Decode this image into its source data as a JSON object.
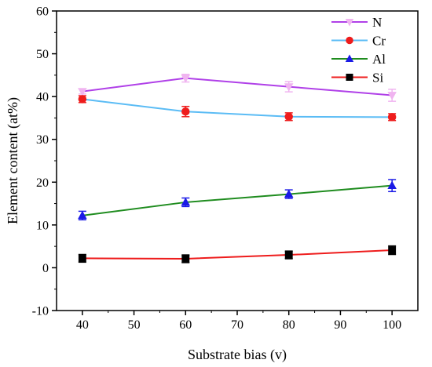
{
  "chart_data": {
    "type": "line",
    "title": "",
    "xlabel": "Substrate bias (v)",
    "ylabel": "Element content (at%)",
    "xlim": [
      35,
      105
    ],
    "ylim": [
      -10,
      60
    ],
    "xticks": [
      40,
      50,
      60,
      70,
      80,
      90,
      100
    ],
    "yticks": [
      -10,
      0,
      10,
      20,
      30,
      40,
      50,
      60
    ],
    "x": [
      40,
      60,
      80,
      100
    ],
    "grid": false,
    "legend_position": "top-right",
    "series": [
      {
        "name": "N",
        "marker": "triangle-down",
        "line_color": "#b040e8",
        "marker_color": "#f0b4f0",
        "values": [
          41.2,
          44.3,
          42.3,
          40.3
        ],
        "errors": [
          0.6,
          0.9,
          1.2,
          1.4
        ]
      },
      {
        "name": "Cr",
        "marker": "circle",
        "line_color": "#5bbcf5",
        "marker_color": "#ee1c1c",
        "values": [
          39.4,
          36.5,
          35.3,
          35.2
        ],
        "errors": [
          0.8,
          1.2,
          0.9,
          0.8
        ]
      },
      {
        "name": "Al",
        "marker": "triangle-up",
        "line_color": "#1f8c1f",
        "marker_color": "#1a1ae6",
        "values": [
          12.2,
          15.3,
          17.2,
          19.2
        ],
        "errors": [
          1.0,
          1.0,
          1.0,
          1.4
        ]
      },
      {
        "name": "Si",
        "marker": "square",
        "line_color": "#ee1c1c",
        "marker_color": "#000000",
        "values": [
          2.2,
          2.1,
          3.0,
          4.1
        ],
        "errors": [
          0.9,
          0.9,
          0.9,
          1.0
        ]
      }
    ]
  }
}
